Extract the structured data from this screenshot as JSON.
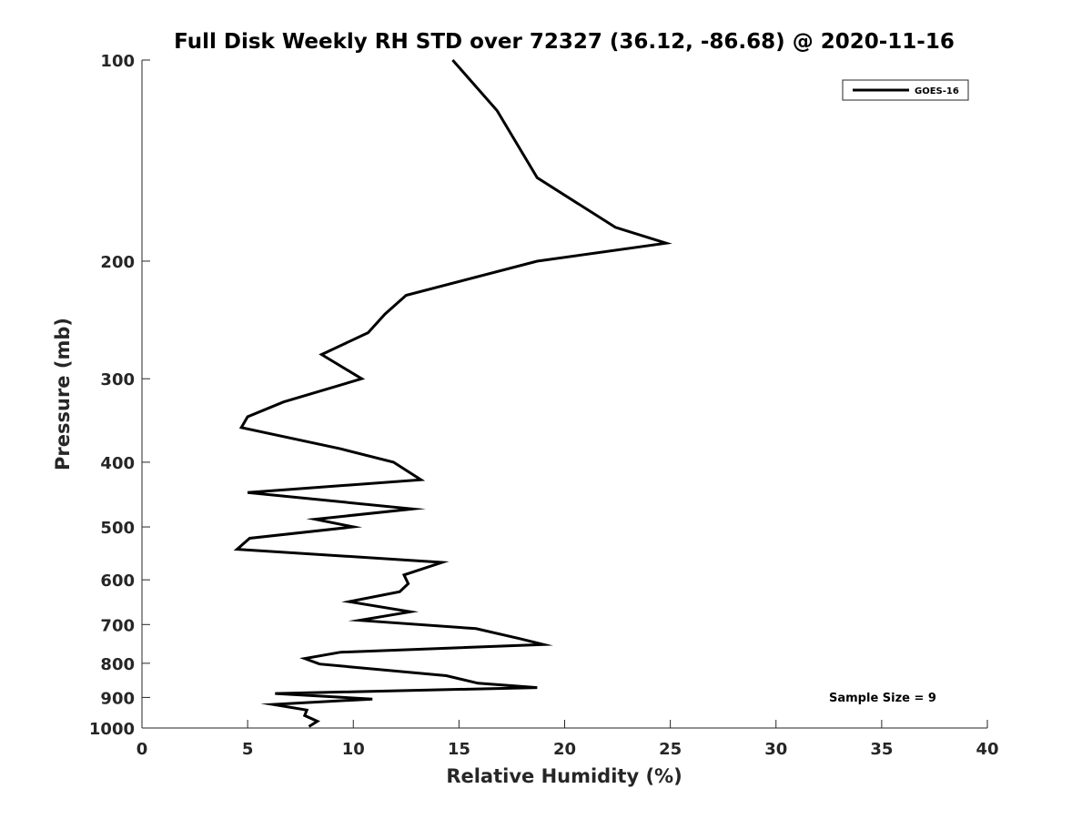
{
  "chart_data": {
    "type": "line",
    "title": "Full Disk Weekly RH STD over 72327 (36.12, -86.68) @ 2020-11-16",
    "xlabel": "Relative Humidity (%)",
    "ylabel": "Pressure (mb)",
    "xlim": [
      0,
      40
    ],
    "ylim": [
      100,
      1000
    ],
    "y_scale": "log",
    "y_reversed": true,
    "x_ticks": [
      0,
      5,
      10,
      15,
      20,
      25,
      30,
      35,
      40
    ],
    "y_ticks": [
      100,
      200,
      300,
      400,
      500,
      600,
      700,
      800,
      900,
      1000
    ],
    "legend": {
      "position": "top-right",
      "entries": [
        "GOES-16"
      ]
    },
    "annotation": "Sample Size = 9",
    "series": [
      {
        "name": "GOES-16",
        "color": "#000000",
        "x": [
          14.7,
          16.8,
          18.7,
          22.4,
          24.8,
          18.7,
          12.5,
          11.5,
          10.7,
          8.5,
          10.4,
          6.7,
          5.0,
          4.7,
          9.4,
          11.9,
          13.2,
          5.0,
          12.8,
          8.2,
          10.0,
          5.1,
          4.5,
          14.2,
          12.4,
          12.6,
          12.2,
          9.8,
          12.7,
          10.3,
          15.8,
          17.9,
          19.0,
          9.4,
          7.7,
          8.4,
          14.4,
          15.9,
          18.7,
          6.3,
          10.9,
          6.2,
          7.8,
          7.7,
          8.3,
          7.9
        ],
        "y": [
          100,
          119,
          150,
          178,
          188,
          200,
          225,
          240,
          256,
          276,
          300,
          325,
          342,
          355,
          382,
          400,
          425,
          444,
          470,
          487,
          500,
          520,
          540,
          565,
          590,
          608,
          625,
          647,
          670,
          690,
          710,
          735,
          750,
          770,
          787,
          802,
          835,
          857,
          870,
          888,
          905,
          922,
          940,
          958,
          977,
          995
        ]
      }
    ]
  }
}
